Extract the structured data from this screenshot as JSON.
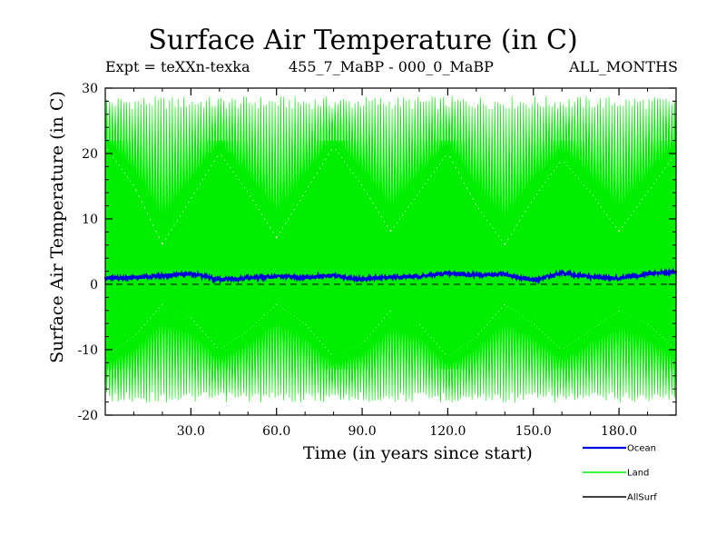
{
  "chart_data": {
    "type": "line",
    "title": "Surface Air Temperature (in C)",
    "subtitle_left": "Expt = teXXn-texka",
    "subtitle_center": "455_7_MaBP - 000_0_MaBP",
    "subtitle_right": "ALL_MONTHS",
    "xlabel": "Time (in years since start)",
    "ylabel": "Surface Air Temperature (in C)",
    "xlim": [
      0,
      200
    ],
    "ylim": [
      -20,
      30
    ],
    "xticks": [
      30,
      60,
      90,
      120,
      150,
      180
    ],
    "xtick_labels": [
      "30.0",
      "60.0",
      "90.0",
      "120.0",
      "150.0",
      "180.0"
    ],
    "yticks": [
      -20,
      -10,
      0,
      10,
      20,
      30
    ],
    "ytick_labels": [
      "-20",
      "-10",
      "0",
      "10",
      "20",
      "30"
    ],
    "reference_line": {
      "y": 0,
      "style": "dashed"
    },
    "series": [
      {
        "name": "Land",
        "color": "#00ee00",
        "description_stats": {
          "annual_max_approx": 28,
          "annual_min_approx": -17,
          "cycles_per_year": 1
        },
        "envelope_x": [
          0,
          10,
          20,
          30,
          40,
          50,
          60,
          70,
          80,
          90,
          100,
          110,
          120,
          130,
          140,
          150,
          160,
          170,
          180,
          190,
          200
        ],
        "envelope_inner_high": [
          21,
          15,
          6,
          13,
          20,
          14,
          7,
          14,
          21,
          15,
          8,
          14,
          20,
          12,
          6,
          13,
          19,
          14,
          8,
          14,
          20
        ],
        "envelope_inner_low": [
          -11,
          -8,
          -3,
          -5,
          -10,
          -7,
          -3,
          -6,
          -11,
          -9,
          -4,
          -6,
          -11,
          -8,
          -3,
          -6,
          -10,
          -7,
          -4,
          -6,
          -10
        ]
      },
      {
        "name": "Ocean",
        "color": "#0000dd",
        "x": [
          0,
          10,
          20,
          30,
          40,
          50,
          60,
          70,
          80,
          90,
          100,
          110,
          120,
          130,
          140,
          150,
          160,
          170,
          180,
          190,
          200
        ],
        "values": [
          0.9,
          1.0,
          1.3,
          1.6,
          0.7,
          1.0,
          1.2,
          1.1,
          1.3,
          0.8,
          1.1,
          1.2,
          1.7,
          1.4,
          1.5,
          0.6,
          1.7,
          1.1,
          0.9,
          1.6,
          1.9
        ]
      },
      {
        "name": "AllSurf",
        "color": "#000000",
        "values": []
      }
    ],
    "legend_position": "bottom-right"
  }
}
